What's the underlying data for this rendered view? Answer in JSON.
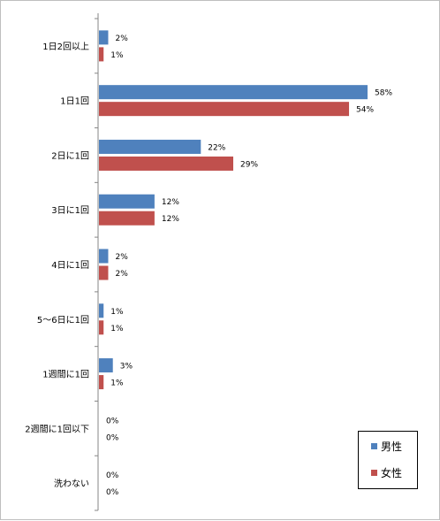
{
  "chart_data": {
    "type": "bar",
    "orientation": "horizontal",
    "categories": [
      "1日2回以上",
      "1日1回",
      "2日に1回",
      "3日に1回",
      "4日に1回",
      "5～6日に1回",
      "1週間に1回",
      "2週間に1回以下",
      "洗わない"
    ],
    "series": [
      {
        "name": "男性",
        "color": "#4f81bd",
        "values": [
          2,
          58,
          22,
          12,
          2,
          1,
          3,
          0,
          0
        ],
        "labels": [
          "2%",
          "58%",
          "22%",
          "12%",
          "2%",
          "1%",
          "3%",
          "0%",
          "0%"
        ]
      },
      {
        "name": "女性",
        "color": "#c0504d",
        "values": [
          1,
          54,
          29,
          12,
          2,
          1,
          1,
          0,
          0
        ],
        "labels": [
          "1%",
          "54%",
          "29%",
          "12%",
          "2%",
          "1%",
          "1%",
          "0%",
          "0%"
        ]
      }
    ],
    "xlim": [
      0,
      70
    ],
    "legend": "bottom-right",
    "grid": false,
    "xlabel": "",
    "ylabel": ""
  }
}
